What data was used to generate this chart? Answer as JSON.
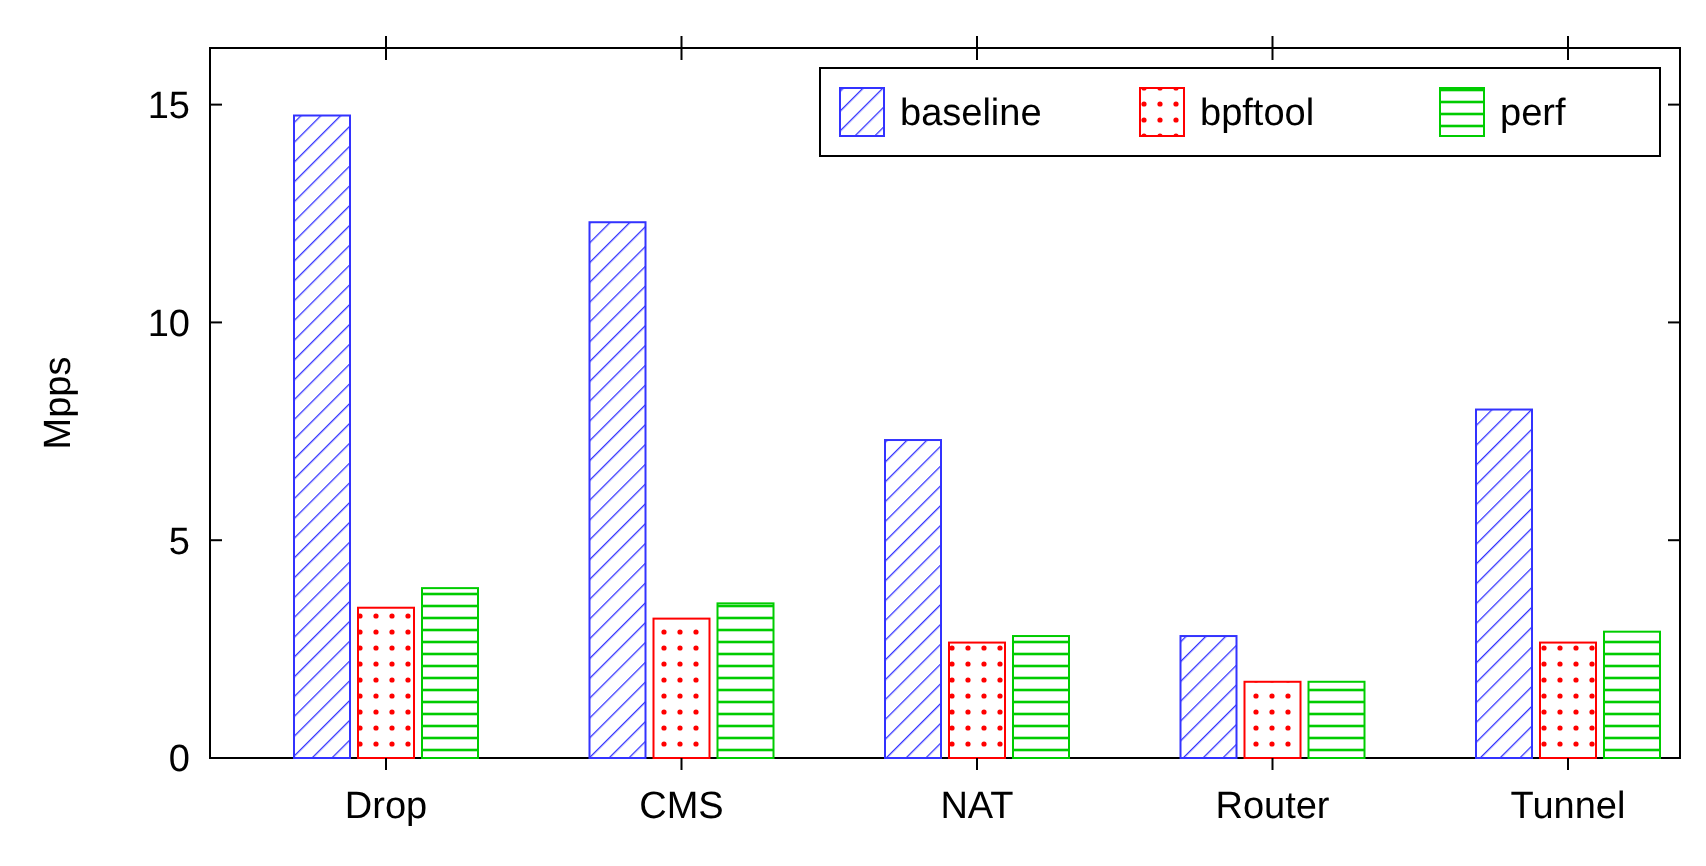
{
  "chart_data": {
    "type": "bar",
    "ylabel": "Mpps",
    "categories": [
      "Drop",
      "CMS",
      "NAT",
      "Router",
      "Tunnel"
    ],
    "series": [
      {
        "name": "baseline",
        "color": "#3333ff",
        "values": [
          14.75,
          12.3,
          7.3,
          2.8,
          8.0
        ]
      },
      {
        "name": "bpftool",
        "color": "#ff0000",
        "values": [
          3.45,
          3.2,
          2.65,
          1.75,
          2.65
        ]
      },
      {
        "name": "perf",
        "color": "#00cc00",
        "values": [
          3.9,
          3.55,
          2.8,
          1.75,
          2.9
        ]
      }
    ],
    "ylim": [
      0,
      16.3
    ],
    "yticks": [
      0,
      5,
      10,
      15
    ],
    "grid": false,
    "legend": "top right"
  }
}
